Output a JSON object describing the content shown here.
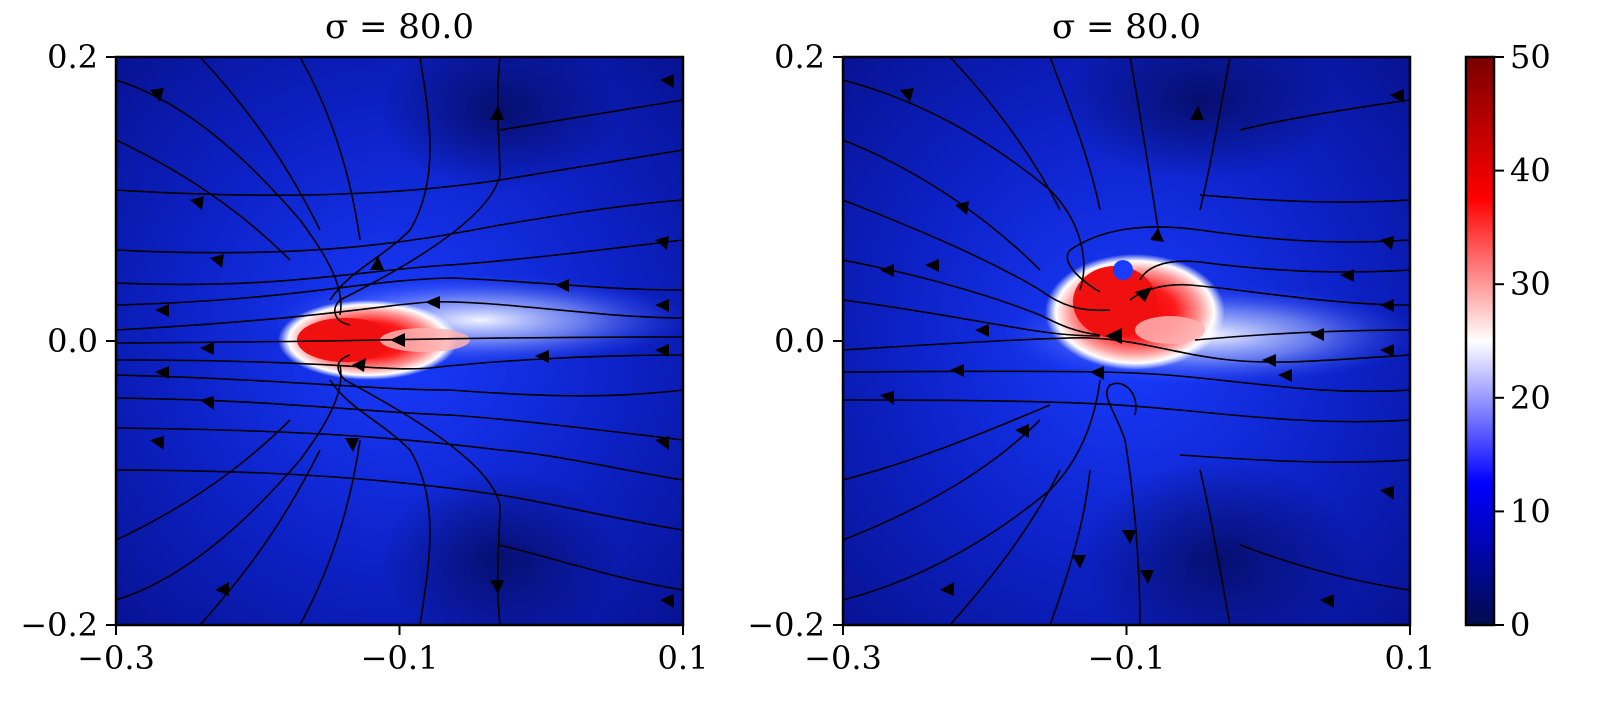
{
  "chart_data": [
    {
      "type": "heatmap",
      "title": "σ = 80.0",
      "xlim": [
        -0.3,
        0.1
      ],
      "ylim": [
        -0.2,
        0.2
      ],
      "xticks": [
        "−0.3",
        "−0.1",
        "0.1"
      ],
      "yticks": [
        "0.2",
        "0.0",
        "−0.2"
      ],
      "xtick_values": [
        -0.3,
        -0.1,
        0.1
      ],
      "ytick_values": [
        0.2,
        0.0,
        -0.2
      ],
      "overlay": "streamlines",
      "hotspot": {
        "x": [
          -0.18,
          -0.08
        ],
        "y": [
          -0.012,
          0.015
        ],
        "peak": 45
      }
    },
    {
      "type": "heatmap",
      "title": "σ = 80.0",
      "xlim": [
        -0.3,
        0.1
      ],
      "ylim": [
        -0.2,
        0.2
      ],
      "xticks": [
        "−0.3",
        "−0.1",
        "0.1"
      ],
      "yticks": [
        "0.2",
        "0.0",
        "−0.2"
      ],
      "xtick_values": [
        -0.3,
        -0.1,
        0.1
      ],
      "ytick_values": [
        0.2,
        0.0,
        -0.2
      ],
      "overlay": "streamlines",
      "hotspot": {
        "x": [
          -0.13,
          -0.07
        ],
        "y": [
          0.0,
          0.05
        ],
        "peak": 45
      }
    }
  ],
  "colorbar": {
    "range": [
      0,
      50
    ],
    "ticks": [
      "50",
      "40",
      "30",
      "20",
      "10",
      "0"
    ],
    "tick_values": [
      50,
      40,
      30,
      20,
      10,
      0
    ],
    "colormap": [
      "#000c4d",
      "#0000ff",
      "#ffffff",
      "#ff0000",
      "#7a0000"
    ]
  },
  "colors": {
    "background_field": "#0d1fb3",
    "streamline": "#000000"
  }
}
